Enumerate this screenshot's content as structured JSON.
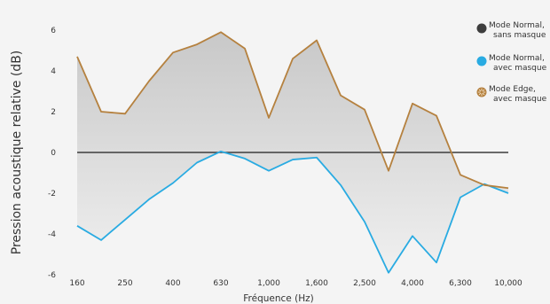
{
  "chart_data": {
    "type": "line",
    "xlabel": "Fréquence (Hz)",
    "ylabel": "Pression acoustique relative (dB)",
    "ylim": [
      -6,
      6
    ],
    "yticks": [
      -6,
      -4,
      -2,
      0,
      2,
      4,
      6
    ],
    "x": [
      160,
      200,
      250,
      315,
      400,
      500,
      630,
      800,
      1000,
      1250,
      1600,
      2000,
      2500,
      3150,
      4000,
      5000,
      6300,
      8000,
      10000
    ],
    "xtick_labels": [
      "160",
      "250",
      "400",
      "630",
      "1,000",
      "1,600",
      "2,500",
      "4,000",
      "6,300",
      "10,000"
    ],
    "xtick_index": [
      0,
      2,
      4,
      6,
      8,
      10,
      12,
      14,
      16,
      18
    ],
    "series": [
      {
        "name": "Mode Normal, sans masque",
        "color": "#3d3d3d",
        "values": [
          0,
          0,
          0,
          0,
          0,
          0,
          0,
          0,
          0,
          0,
          0,
          0,
          0,
          0,
          0,
          0,
          0,
          0,
          0
        ]
      },
      {
        "name": "Mode Normal, avec masque",
        "color": "#29abe2",
        "values": [
          -3.6,
          -4.3,
          -3.3,
          -2.3,
          -1.5,
          -0.5,
          0.05,
          -0.3,
          -0.9,
          -0.35,
          -0.25,
          -1.6,
          -3.4,
          -5.9,
          -4.1,
          -5.4,
          -2.2,
          -1.55,
          -2.0
        ]
      },
      {
        "name": "Mode Edge, avec masque",
        "color": "#b5813f",
        "values": [
          4.7,
          2.0,
          1.9,
          3.5,
          4.9,
          5.3,
          5.9,
          5.1,
          1.7,
          4.6,
          5.5,
          2.8,
          2.1,
          -0.9,
          2.4,
          1.8,
          -1.1,
          -1.6,
          -1.75
        ]
      }
    ],
    "legend": [
      {
        "line1": "Mode Normal,",
        "line2": "sans masque",
        "icon": "filled-circle-icon"
      },
      {
        "line1": "Mode Normal,",
        "line2": "avec masque",
        "icon": "filled-circle-icon"
      },
      {
        "line1": "Mode Edge,",
        "line2": "avec masque",
        "icon": "sunburst-circle-icon"
      }
    ],
    "legend_position": "top-right",
    "fill_between": {
      "color": "#cfcfcf",
      "gradient_to": "#f4f4f4"
    },
    "grid": false
  }
}
